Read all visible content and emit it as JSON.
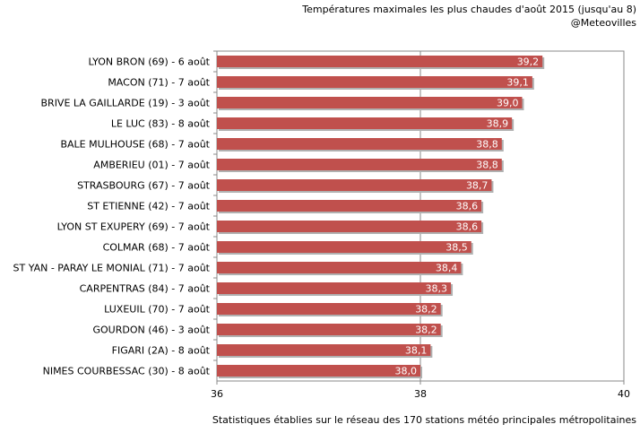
{
  "chart_data": {
    "type": "bar",
    "orientation": "horizontal",
    "title": "Températures maximales les plus chaudes d'août 2015 (jusqu'au 8)",
    "subtitle": "@Meteovilles",
    "footer": "Statistiques établies sur le réseau des 170 stations météo principales métropolitaines",
    "categories": [
      "LYON BRON (69) - 6 août",
      "MACON (71) - 7 août",
      "BRIVE LA GAILLARDE (19) - 3 août",
      "LE LUC (83) - 8 août",
      "BALE MULHOUSE (68) - 7 août",
      "AMBERIEU (01) - 7 août",
      "STRASBOURG (67) - 7 août",
      "ST ETIENNE (42) - 7 août",
      "LYON ST EXUPERY (69) - 7 août",
      "COLMAR (68) - 7 août",
      "ST YAN - PARAY LE MONIAL (71) - 7 août",
      "CARPENTRAS (84) - 7 août",
      "LUXEUIL (70) - 7 août",
      "GOURDON (46) - 3 août",
      "FIGARI (2A) - 8 août",
      "NIMES COURBESSAC (30) - 8 août"
    ],
    "values": [
      39.2,
      39.1,
      39.0,
      38.9,
      38.8,
      38.8,
      38.7,
      38.6,
      38.6,
      38.5,
      38.4,
      38.3,
      38.2,
      38.2,
      38.1,
      38.0
    ],
    "value_labels": [
      "39,2",
      "39,1",
      "39,0",
      "38,9",
      "38,8",
      "38,8",
      "38,7",
      "38,6",
      "38,6",
      "38,5",
      "38,4",
      "38,3",
      "38,2",
      "38,2",
      "38,1",
      "38,0"
    ],
    "xlim": [
      36,
      40
    ],
    "xticks": [
      36,
      38,
      40
    ],
    "xtick_labels": [
      "36",
      "38",
      "40"
    ],
    "grid": true,
    "bar_color": "#c0504d"
  }
}
